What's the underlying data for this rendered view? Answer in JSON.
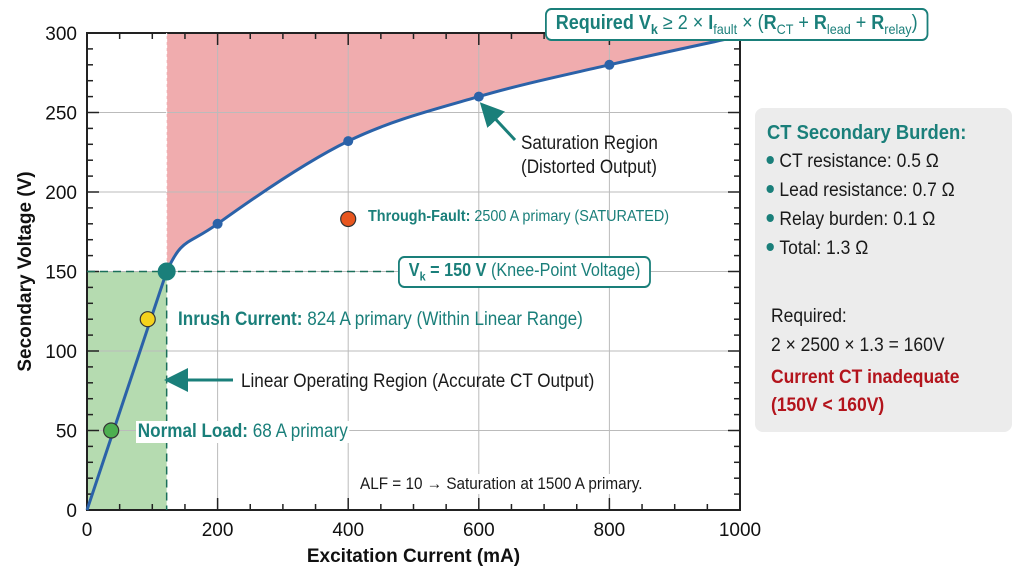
{
  "chart_data": {
    "type": "line",
    "xlabel": "Excitation Current (mA)",
    "ylabel": "Secondary Voltage (V)",
    "xlim": [
      0,
      1000
    ],
    "ylim": [
      0,
      300
    ],
    "x_ticks": [
      0,
      200,
      400,
      600,
      800,
      1000
    ],
    "y_ticks": [
      0,
      50,
      100,
      150,
      200,
      250,
      300
    ],
    "grid": true,
    "series": [
      {
        "color": "#2b62a8",
        "x": [
          0,
          122,
          200,
          400,
          600,
          800,
          1000
        ],
        "y": [
          0,
          150,
          180,
          232,
          260,
          280,
          298
        ],
        "markers": [
          {
            "x": 200,
            "y": 180
          },
          {
            "x": 400,
            "y": 232
          },
          {
            "x": 600,
            "y": 260
          },
          {
            "x": 800,
            "y": 280
          }
        ]
      }
    ],
    "knee_point": {
      "x": 122,
      "y": 150,
      "color": "#1a7f7a"
    },
    "regions": {
      "linear": {
        "x": [
          0,
          122
        ],
        "y": [
          0,
          150
        ],
        "color": "#a8d5a2"
      },
      "saturation": {
        "x": [
          122,
          1000
        ],
        "y_max": 300,
        "color": "#eea3a5"
      }
    },
    "points": [
      {
        "name": "normal-load",
        "x": 37,
        "y": 50,
        "color": "#4caf50"
      },
      {
        "name": "inrush",
        "x": 93,
        "y": 120,
        "color": "#f5d21c"
      },
      {
        "name": "through-fault",
        "x": 400,
        "y": 183,
        "color": "#e8561f"
      }
    ],
    "annotations": {
      "formula": {
        "a": "Required V",
        "a_sub": "k",
        "b": " ≥ 2 × ",
        "c": "I",
        "c_sub": "fault",
        "d": " × (",
        "e": "R",
        "e_sub": "CT",
        "f": " + ",
        "g": "R",
        "g_sub": "lead",
        "h": " + ",
        "i": "R",
        "i_sub": "relay",
        "j": ")"
      },
      "vk": {
        "a": "V",
        "a_sub": "k",
        "b": " = 150 V",
        "c": " (Knee-Point Voltage)"
      },
      "saturation": [
        "Saturation Region",
        "(Distorted Output)"
      ],
      "through_fault": {
        "label": "Through-Fault:",
        "text": " 2500 A primary (SATURATED)"
      },
      "inrush": {
        "label": "Inrush Current:",
        "text": " 824 A primary (Within Linear Range)"
      },
      "linear": "Linear Operating Region (Accurate CT Output)",
      "normal": {
        "label": "Normal Load:",
        "text": " 68 A primary"
      },
      "alf": "ALF = 10 → Saturation at 1500 A primary."
    }
  },
  "panel": {
    "title": "CT Secondary Burden:",
    "items": [
      "CT resistance: 0.5 Ω",
      "Lead resistance: 0.7 Ω",
      "Relay burden: 0.1 Ω",
      "Total: 1.3 Ω"
    ],
    "required_label": "Required:",
    "required_calc": "2 × 2500 × 1.3 = 160V",
    "verdict_1": "Current CT inadequate",
    "verdict_2": "(150V < 160V)"
  },
  "colors": {
    "accent": "#1a7f7a",
    "curve": "#2b62a8",
    "warning": "#b3141c"
  }
}
